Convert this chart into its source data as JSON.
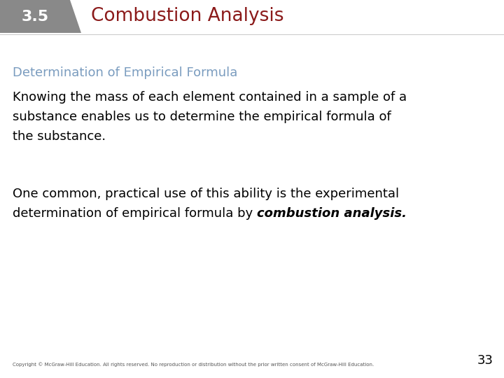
{
  "section_number": "3.5",
  "section_title": "Combustion Analysis",
  "section_num_bg": "#898989",
  "section_num_color": "#ffffff",
  "section_title_color": "#8b1a1a",
  "subtitle": "Determination of Empirical Formula",
  "subtitle_color": "#7a9cbf",
  "para1_line1": "Knowing the mass of each element contained in a sample of a",
  "para1_line2": "substance enables us to determine the empirical formula of",
  "para1_line3": "the substance.",
  "para2_line1": "One common, practical use of this ability is the experimental",
  "para2_line2_normal": "determination of empirical formula by ",
  "para2_line2_bold": "combustion analysis.",
  "footer_text": "Copyright © McGraw-Hill Education. All rights reserved. No reproduction or distribution without the prior written consent of McGraw-Hill Education.",
  "footer_page": "33",
  "bg_color": "#ffffff",
  "body_color": "#000000",
  "footer_color": "#555555"
}
